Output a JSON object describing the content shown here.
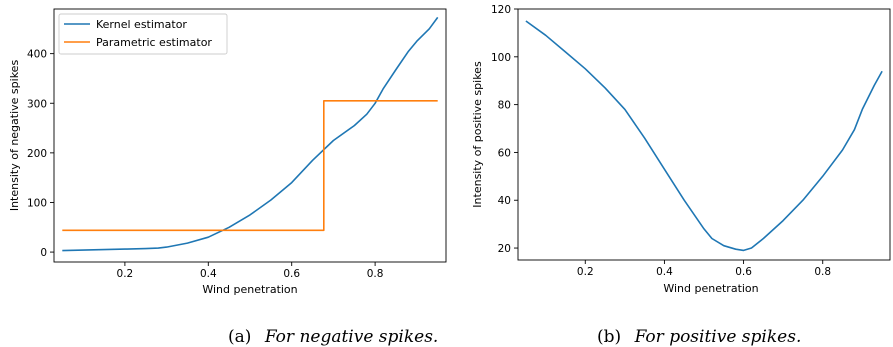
{
  "colors": {
    "kernel": "#1f77b4",
    "parametric": "#ff7f0e"
  },
  "chart_data": [
    {
      "type": "line",
      "caption_tag": "(a)",
      "caption_text": "For negative spikes.",
      "xlabel": "Wind penetration",
      "ylabel": "Intensity of negative spikes",
      "xlim": [
        0.03,
        0.97
      ],
      "ylim": [
        -20,
        490
      ],
      "xticks": [
        0.2,
        0.4,
        0.6,
        0.8
      ],
      "xtick_labels": [
        "0.2",
        "0.4",
        "0.6",
        "0.8"
      ],
      "yticks": [
        0,
        100,
        200,
        300,
        400
      ],
      "ytick_labels": [
        "0",
        "100",
        "200",
        "300",
        "400"
      ],
      "grid": false,
      "legend": "top-left",
      "series": [
        {
          "name": "Kernel estimator",
          "color": "#1f77b4",
          "step": false,
          "x": [
            0.05,
            0.1,
            0.15,
            0.2,
            0.25,
            0.28,
            0.3,
            0.35,
            0.4,
            0.45,
            0.5,
            0.55,
            0.6,
            0.65,
            0.7,
            0.75,
            0.78,
            0.8,
            0.82,
            0.85,
            0.88,
            0.9,
            0.93,
            0.95
          ],
          "y": [
            3,
            4,
            5,
            6,
            7,
            8,
            10,
            18,
            30,
            50,
            75,
            105,
            140,
            185,
            225,
            255,
            278,
            300,
            330,
            368,
            405,
            425,
            450,
            473
          ]
        },
        {
          "name": "Parametric estimator",
          "color": "#ff7f0e",
          "step": true,
          "x": [
            0.05,
            0.677,
            0.677,
            0.95
          ],
          "y": [
            44,
            44,
            305,
            305
          ]
        }
      ]
    },
    {
      "type": "line",
      "caption_tag": "(b)",
      "caption_text": "For positive spikes.",
      "xlabel": "Wind penetration",
      "ylabel": "Intensity of positive spikes",
      "xlim": [
        0.03,
        0.97
      ],
      "ylim": [
        15,
        120
      ],
      "xticks": [
        0.2,
        0.4,
        0.6,
        0.8
      ],
      "xtick_labels": [
        "0.2",
        "0.4",
        "0.6",
        "0.8"
      ],
      "yticks": [
        20,
        40,
        60,
        80,
        100,
        120
      ],
      "ytick_labels": [
        "20",
        "40",
        "60",
        "80",
        "100",
        "120"
      ],
      "grid": false,
      "series": [
        {
          "color": "#1f77b4",
          "step": false,
          "x": [
            0.05,
            0.1,
            0.15,
            0.2,
            0.25,
            0.3,
            0.35,
            0.4,
            0.45,
            0.5,
            0.52,
            0.55,
            0.58,
            0.6,
            0.62,
            0.65,
            0.7,
            0.75,
            0.8,
            0.85,
            0.88,
            0.9,
            0.93,
            0.95
          ],
          "y": [
            115,
            109,
            102,
            95,
            87,
            78,
            66,
            53,
            40,
            28,
            24,
            21,
            19.5,
            19,
            20,
            24,
            31.5,
            40,
            50,
            61,
            69.5,
            78,
            88,
            94
          ]
        }
      ]
    }
  ]
}
